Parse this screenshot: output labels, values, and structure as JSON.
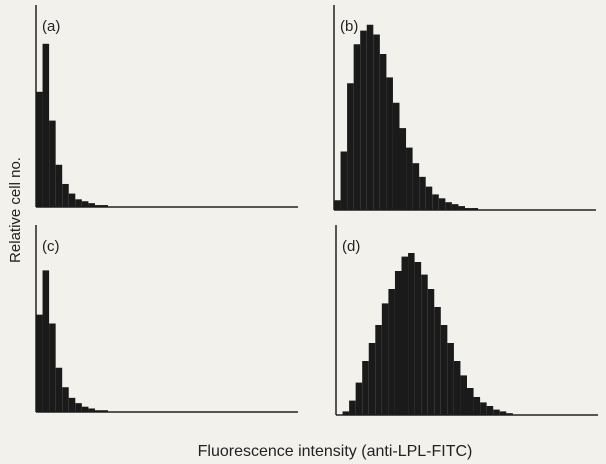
{
  "y_label": "Relative cell no.",
  "x_label": "Fluorescence intensity (anti-LPL-FITC)",
  "chart_data": [
    {
      "type": "histogram",
      "label": "(a)",
      "color": "#1a1a1a",
      "xlim": [
        0,
        100
      ],
      "ylim": [
        0,
        100
      ],
      "bins": [
        0,
        2.5,
        5,
        7.5,
        10,
        12.5,
        15,
        17.5,
        20,
        22.5,
        25,
        27.5,
        30,
        32.5,
        35,
        37.5,
        40,
        42.5,
        45,
        47.5,
        50,
        52.5,
        55,
        57.5,
        60,
        62.5,
        65,
        67.5,
        70,
        72.5,
        75,
        77.5,
        80,
        82.5,
        85,
        87.5,
        90,
        92.5,
        95,
        97.5,
        100
      ],
      "values": [
        60,
        85,
        45,
        22,
        12,
        7,
        4,
        3,
        2,
        1,
        1,
        0,
        0,
        0,
        0,
        0,
        0,
        0,
        0,
        0,
        0,
        0,
        0,
        0,
        0,
        0,
        0,
        0,
        0,
        0,
        0,
        0,
        0,
        0,
        0,
        0,
        0,
        0,
        0,
        0
      ]
    },
    {
      "type": "histogram",
      "label": "(b)",
      "color": "#1a1a1a",
      "xlim": [
        0,
        100
      ],
      "ylim": [
        0,
        100
      ],
      "bins": [
        0,
        2.5,
        5,
        7.5,
        10,
        12.5,
        15,
        17.5,
        20,
        22.5,
        25,
        27.5,
        30,
        32.5,
        35,
        37.5,
        40,
        42.5,
        45,
        47.5,
        50,
        52.5,
        55,
        57.5,
        60,
        62.5,
        65,
        67.5,
        70,
        72.5,
        75,
        77.5,
        80,
        82.5,
        85,
        87.5,
        90,
        92.5,
        95,
        97.5,
        100
      ],
      "values": [
        5,
        30,
        65,
        85,
        92,
        95,
        90,
        80,
        68,
        55,
        42,
        32,
        24,
        17,
        12,
        8,
        6,
        4,
        3,
        2,
        1,
        1,
        0,
        0,
        0,
        0,
        0,
        0,
        0,
        0,
        0,
        0,
        0,
        0,
        0,
        0,
        0,
        0,
        0,
        0
      ]
    },
    {
      "type": "histogram",
      "label": "(c)",
      "color": "#1a1a1a",
      "xlim": [
        0,
        100
      ],
      "ylim": [
        0,
        100
      ],
      "bins": [
        0,
        2.5,
        5,
        7.5,
        10,
        12.5,
        15,
        17.5,
        20,
        22.5,
        25,
        27.5,
        30,
        32.5,
        35,
        37.5,
        40,
        42.5,
        45,
        47.5,
        50,
        52.5,
        55,
        57.5,
        60,
        62.5,
        65,
        67.5,
        70,
        72.5,
        75,
        77.5,
        80,
        82.5,
        85,
        87.5,
        90,
        92.5,
        95,
        97.5,
        100
      ],
      "values": [
        55,
        80,
        50,
        25,
        14,
        8,
        5,
        3,
        2,
        1,
        1,
        0,
        0,
        0,
        0,
        0,
        0,
        0,
        0,
        0,
        0,
        0,
        0,
        0,
        0,
        0,
        0,
        0,
        0,
        0,
        0,
        0,
        0,
        0,
        0,
        0,
        0,
        0,
        0,
        0
      ]
    },
    {
      "type": "histogram",
      "label": "(d)",
      "color": "#1a1a1a",
      "xlim": [
        0,
        100
      ],
      "ylim": [
        0,
        100
      ],
      "bins": [
        0,
        2.5,
        5,
        7.5,
        10,
        12.5,
        15,
        17.5,
        20,
        22.5,
        25,
        27.5,
        30,
        32.5,
        35,
        37.5,
        40,
        42.5,
        45,
        47.5,
        50,
        52.5,
        55,
        57.5,
        60,
        62.5,
        65,
        67.5,
        70,
        72.5,
        75,
        77.5,
        80,
        82.5,
        85,
        87.5,
        90,
        92.5,
        95,
        97.5,
        100
      ],
      "values": [
        0,
        2,
        8,
        18,
        30,
        40,
        50,
        62,
        70,
        80,
        88,
        90,
        85,
        78,
        70,
        60,
        50,
        40,
        30,
        22,
        15,
        10,
        7,
        5,
        3,
        2,
        1,
        0,
        0,
        0,
        0,
        0,
        0,
        0,
        0,
        0,
        0,
        0,
        0,
        0
      ]
    }
  ]
}
